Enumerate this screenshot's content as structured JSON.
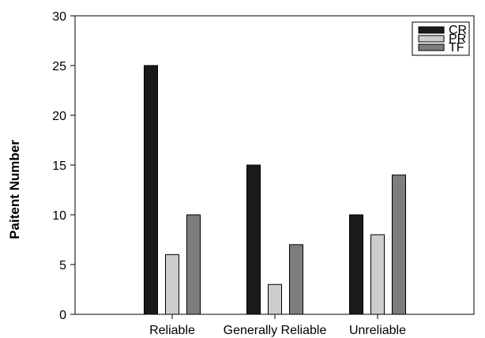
{
  "chart_data": {
    "type": "bar",
    "title": "",
    "xlabel": "",
    "ylabel": "Paitent Number",
    "categories": [
      "Reliable",
      "Generally Reliable",
      "Unreliable"
    ],
    "series": [
      {
        "name": "CR",
        "values": [
          25,
          15,
          10
        ],
        "color": "#1a1a1a"
      },
      {
        "name": "PR",
        "values": [
          6,
          3,
          8
        ],
        "color": "#cdcdcd"
      },
      {
        "name": "TF",
        "values": [
          10,
          7,
          14
        ],
        "color": "#7d7d7d"
      }
    ],
    "ylim": [
      0,
      30
    ],
    "yticks": [
      0,
      5,
      10,
      15,
      20,
      25,
      30
    ],
    "grid": false,
    "legend_position": "top-right"
  }
}
